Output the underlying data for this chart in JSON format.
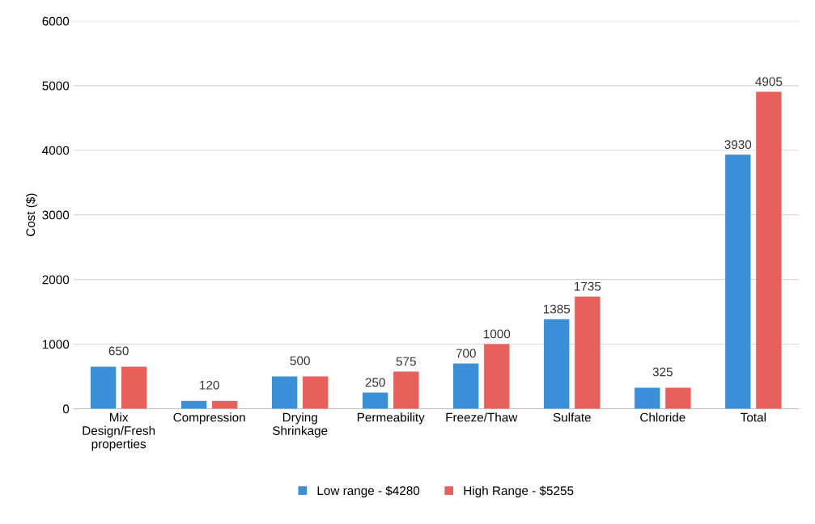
{
  "chart_data": {
    "type": "bar",
    "ylabel": "Cost ($)",
    "categories": [
      "Mix\nDesign/Fresh\nproperties",
      "Compression",
      "Drying\nShrinkage",
      "Permeability",
      "Freeze/Thaw",
      "Sulfate",
      "Chloride",
      "Total"
    ],
    "series": [
      {
        "name": "Low range - $4280",
        "color": "#3a8fd8",
        "values": [
          650,
          120,
          500,
          250,
          700,
          1385,
          325,
          3930
        ],
        "value_labels": [
          null,
          null,
          null,
          "250",
          "700",
          "1385",
          null,
          "3930"
        ]
      },
      {
        "name": "High Range - $5255",
        "color": "#e8605c",
        "values": [
          650,
          120,
          500,
          575,
          1000,
          1735,
          325,
          4905
        ],
        "value_labels": [
          null,
          null,
          null,
          "575",
          "1000",
          "1735",
          null,
          "4905"
        ]
      }
    ],
    "annotations": [
      {
        "text": "650",
        "x": "Mix\nDesign/Fresh\nproperties",
        "y": 650
      },
      {
        "text": "120",
        "x": "Compression",
        "y": 120
      },
      {
        "text": "500",
        "x": "Drying\nShrinkage",
        "y": 500
      },
      {
        "text": "325",
        "x": "Chloride",
        "y": 325
      }
    ],
    "ylim": [
      0,
      6000
    ],
    "yticks": [
      0,
      1000,
      2000,
      3000,
      4000,
      5000,
      6000
    ],
    "grid": "y",
    "legend": "bottom"
  }
}
